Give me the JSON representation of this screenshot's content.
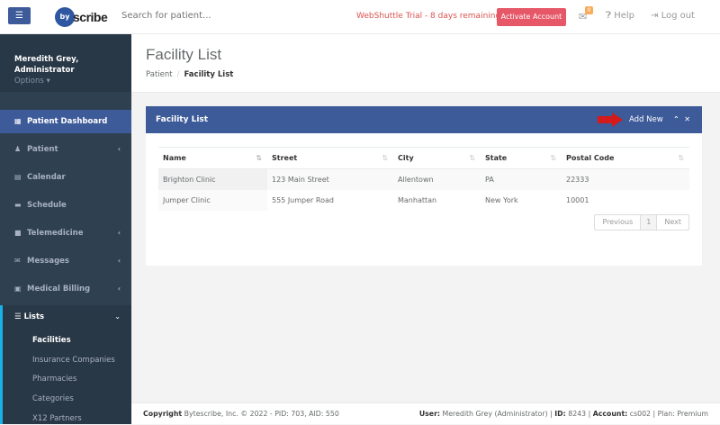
{
  "topbar": {
    "menu_icon": "bars-icon",
    "logo_text": "bytescribe",
    "search_placeholder": "Search for patient...",
    "trial_notice": "WebShuttle Trial - 8 days remaining",
    "activate_label": "Activate Account",
    "mail_badge": "0",
    "help_label": "Help",
    "logout_label": "Log out"
  },
  "colors": {
    "brand": "#3d5a99",
    "sidebar": "#2f4050",
    "danger": "#e65868",
    "trial": "#d9534f"
  },
  "sidebar": {
    "user_name": "Meredith Grey,",
    "user_role": "Administrator",
    "options_label": "Options",
    "items": [
      {
        "label": "Patient Dashboard",
        "icon": "th-large-icon"
      },
      {
        "label": "Patient",
        "icon": "user-icon",
        "chevron": true
      },
      {
        "label": "Calendar",
        "icon": "calendar-icon"
      },
      {
        "label": "Schedule",
        "icon": "schedule-icon"
      },
      {
        "label": "Telemedicine",
        "icon": "video-icon",
        "chevron": true
      },
      {
        "label": "Messages",
        "icon": "envelope-icon",
        "chevron": true
      },
      {
        "label": "Medical Billing",
        "icon": "money-icon",
        "chevron": true
      }
    ],
    "lists": {
      "label": "Lists",
      "icon": "list-icon",
      "subitems": [
        "Facilities",
        "Insurance Companies",
        "Pharmacies",
        "Categories",
        "X12 Partners"
      ]
    }
  },
  "page": {
    "title": "Facility List",
    "breadcrumb": [
      "Patient",
      "Facility List"
    ]
  },
  "panel": {
    "title": "Facility List",
    "add_new": "Add New",
    "columns": [
      "Name",
      "Street",
      "City",
      "State",
      "Postal Code"
    ],
    "rows": [
      [
        "Brighton Clinic",
        "123 Main Street",
        "Allentown",
        "PA",
        "22333"
      ],
      [
        "Jumper Clinic",
        "555 Jumper Road",
        "Manhattan",
        "New York",
        "10001"
      ]
    ],
    "pagination": {
      "previous": "Previous",
      "current": "1",
      "next": "Next"
    }
  },
  "footer": {
    "copyright_label": "Copyright",
    "copyright_text": "Bytescribe, Inc. © 2022 - PID: 703, AID: 550",
    "user_label": "User:",
    "user_value": "Meredith Grey (Administrator)",
    "id_label": "ID:",
    "id_value": "8243",
    "account_label": "Account:",
    "account_value": "cs002",
    "plan": "Plan: Premium"
  }
}
